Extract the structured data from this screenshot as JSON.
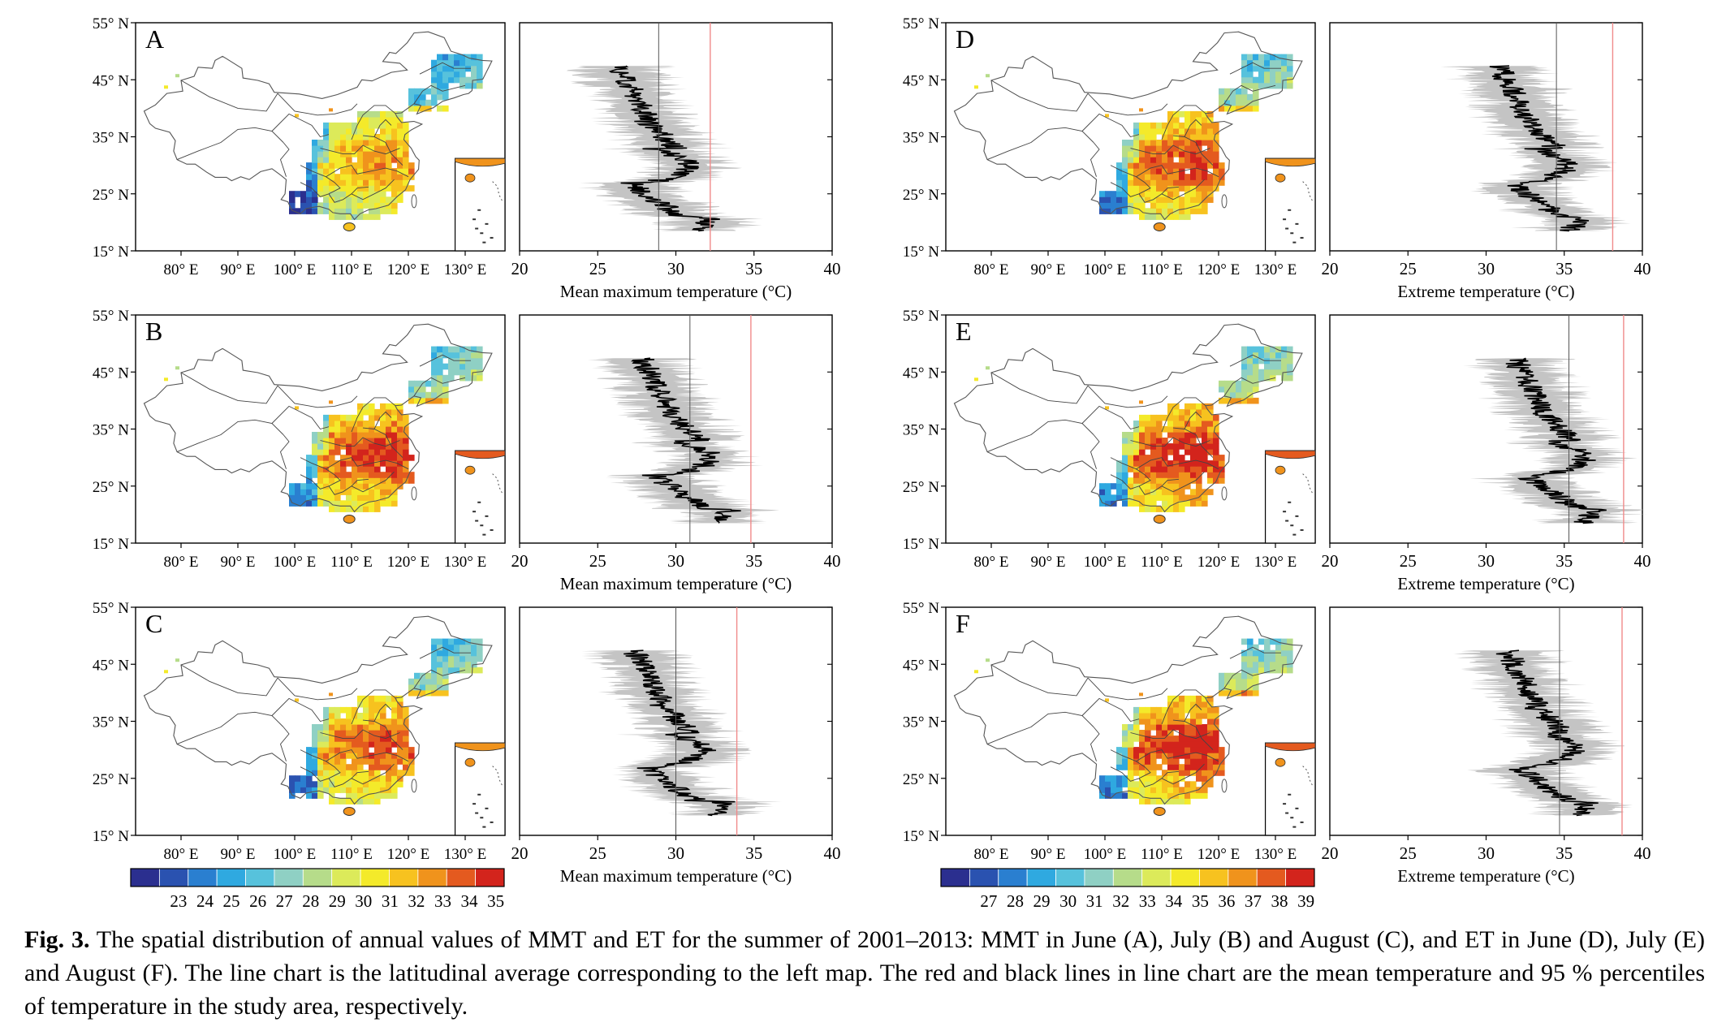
{
  "panels": [
    {
      "letter": "A",
      "xlabel": "Mean maximum temperature (°C)",
      "mean": 28.9,
      "p95": 32.2,
      "shift": 0,
      "warmth": 0.45
    },
    {
      "letter": "B",
      "xlabel": "Mean maximum temperature (°C)",
      "mean": 30.9,
      "p95": 34.8,
      "shift": 1.5,
      "warmth": 0.75
    },
    {
      "letter": "C",
      "xlabel": "Mean maximum temperature (°C)",
      "mean": 30.0,
      "p95": 33.9,
      "shift": 1.0,
      "warmth": 0.65
    },
    {
      "letter": "D",
      "xlabel": "Extreme temperature (°C)",
      "mean": 34.5,
      "p95": 38.1,
      "shift": 4.5,
      "warmth": 0.7
    },
    {
      "letter": "E",
      "xlabel": "Extreme temperature (°C)",
      "mean": 35.3,
      "p95": 38.8,
      "shift": 5.5,
      "warmth": 0.8
    },
    {
      "letter": "F",
      "xlabel": "Extreme temperature (°C)",
      "mean": 34.7,
      "p95": 38.7,
      "shift": 5.0,
      "warmth": 0.8
    }
  ],
  "lat_ticks": [
    "55° N",
    "45° N",
    "35° N",
    "25° N",
    "15° N"
  ],
  "lon_ticks": [
    "80° E",
    "90° E",
    "100° E",
    "110° E",
    "120° E",
    "130° E"
  ],
  "chart_data": [
    {
      "type": "line",
      "panel": "A",
      "xlabel": "Mean maximum temperature (°C)",
      "xlim": [
        20,
        40
      ],
      "ylim": [
        15,
        55
      ],
      "x_ticks": [
        20,
        25,
        30,
        35,
        40
      ]
    },
    {
      "type": "line",
      "panel": "B",
      "xlabel": "Mean maximum temperature (°C)",
      "xlim": [
        20,
        40
      ],
      "ylim": [
        15,
        55
      ],
      "x_ticks": [
        20,
        25,
        30,
        35,
        40
      ]
    },
    {
      "type": "line",
      "panel": "C",
      "xlabel": "Mean maximum temperature (°C)",
      "xlim": [
        20,
        40
      ],
      "ylim": [
        15,
        55
      ],
      "x_ticks": [
        20,
        25,
        30,
        35,
        40
      ]
    },
    {
      "type": "line",
      "panel": "D",
      "xlabel": "Extreme temperature (°C)",
      "xlim": [
        20,
        40
      ],
      "ylim": [
        15,
        55
      ],
      "x_ticks": [
        20,
        25,
        30,
        35,
        40
      ]
    },
    {
      "type": "line",
      "panel": "E",
      "xlabel": "Extreme temperature (°C)",
      "xlim": [
        20,
        40
      ],
      "ylim": [
        15,
        55
      ],
      "x_ticks": [
        20,
        25,
        30,
        35,
        40
      ]
    },
    {
      "type": "line",
      "panel": "F",
      "xlabel": "Extreme temperature (°C)",
      "xlim": [
        20,
        40
      ],
      "ylim": [
        15,
        55
      ],
      "x_ticks": [
        20,
        25,
        30,
        35,
        40
      ]
    }
  ],
  "colorbars": [
    {
      "labels": [
        "23",
        "24",
        "25",
        "26",
        "27",
        "28",
        "29",
        "30",
        "31",
        "32",
        "33",
        "34",
        "35"
      ],
      "colors": [
        "#2b2f8f",
        "#2a52b0",
        "#2a7fd0",
        "#2fa9e0",
        "#57c2dc",
        "#8fd0c4",
        "#b6dc8a",
        "#dcea5a",
        "#f4ea2a",
        "#f7c21f",
        "#f0931c",
        "#e45a1f",
        "#d3241c"
      ]
    },
    {
      "labels": [
        "27",
        "28",
        "29",
        "30",
        "31",
        "32",
        "33",
        "34",
        "35",
        "36",
        "37",
        "38",
        "39"
      ],
      "colors": [
        "#2b2f8f",
        "#2a52b0",
        "#2a7fd0",
        "#2fa9e0",
        "#57c2dc",
        "#8fd0c4",
        "#b6dc8a",
        "#dcea5a",
        "#f4ea2a",
        "#f7c21f",
        "#f0931c",
        "#e45a1f",
        "#d3241c"
      ]
    }
  ],
  "caption": {
    "label": "Fig. 3.",
    "text": "The spatial distribution of annual values of MMT and ET for the summer of 2001–2013: MMT in June (A), July (B) and August (C), and ET in June (D), July (E) and August (F). The line chart is the latitudinal average corresponding to the left map. The red and black lines in line chart are the mean temperature and 95 % percentiles of temperature in the study area, respectively."
  },
  "colors": {
    "mean_line": "#f08a8a",
    "profile": "#000000",
    "band": "#c4c4c4",
    "grid_line": "#999999"
  }
}
